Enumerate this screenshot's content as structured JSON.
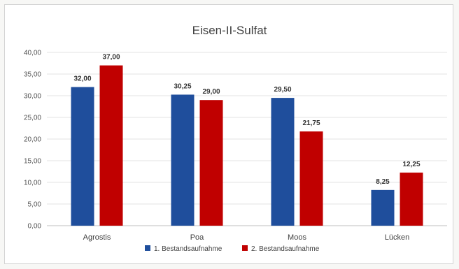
{
  "chart_data": {
    "type": "bar",
    "title": "Eisen-II-Sulfat",
    "xlabel": "",
    "ylabel": "",
    "categories": [
      "Agrostis",
      "Poa",
      "Moos",
      "Lücken"
    ],
    "series": [
      {
        "name": "1. Bestandsaufnahme",
        "color": "#1f4e9c",
        "values": [
          32.0,
          30.25,
          29.5,
          8.25
        ],
        "labels": [
          "32,00",
          "30,25",
          "29,50",
          "8,25"
        ]
      },
      {
        "name": "2. Bestandsaufnahme",
        "color": "#c00000",
        "values": [
          37.0,
          29.0,
          21.75,
          12.25
        ],
        "labels": [
          "37,00",
          "29,00",
          "21,75",
          "12,25"
        ]
      }
    ],
    "ylim": [
      0,
      40
    ],
    "yticks": [
      0,
      5,
      10,
      15,
      20,
      25,
      30,
      35,
      40
    ],
    "ytick_labels": [
      "0,00",
      "5,00",
      "10,00",
      "15,00",
      "20,00",
      "25,00",
      "30,00",
      "35,00",
      "40,00"
    ],
    "grid": true,
    "legend_position": "bottom-center"
  }
}
